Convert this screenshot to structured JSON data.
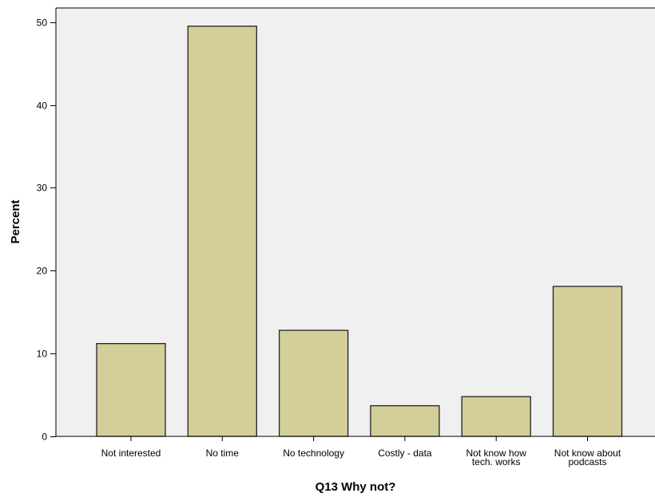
{
  "chart_data": {
    "type": "bar",
    "title": "",
    "xlabel": "Q13 Why not?",
    "ylabel": "Percent",
    "categories": [
      [
        "Not interested"
      ],
      [
        "No time"
      ],
      [
        "No technology"
      ],
      [
        "Costly - data"
      ],
      [
        "Not know how",
        "tech. works"
      ],
      [
        "Not know about",
        "podcasts"
      ]
    ],
    "values": [
      11.2,
      49.5,
      12.8,
      3.7,
      4.8,
      18.1
    ],
    "ylim": [
      0,
      51.7
    ],
    "yticks": [
      0,
      10,
      20,
      30,
      40,
      50
    ],
    "grid": false,
    "legend": "none",
    "colors": {
      "bar_fill": "#d4ce98",
      "bar_stroke": "#222222",
      "plot_background": "#f0f0f0",
      "axis": "#000000"
    }
  }
}
